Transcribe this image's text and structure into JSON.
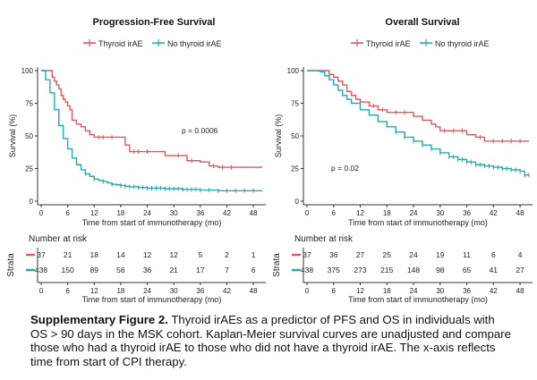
{
  "chart_data": [
    {
      "type": "line",
      "subtype": "kaplan-meier",
      "title": "Progression-Free Survival",
      "legend": {
        "strata_label": "Strata",
        "position": "top"
      },
      "xlabel": "Time from start of immunotherapy (mo)",
      "ylabel": "Survival (%)",
      "xlim": [
        0,
        50
      ],
      "ylim": [
        0,
        100
      ],
      "xticks": [
        0,
        6,
        12,
        18,
        24,
        30,
        36,
        42,
        48
      ],
      "yticks": [
        0,
        25,
        50,
        75,
        100
      ],
      "annotation": "p = 0.0006",
      "series": [
        {
          "name": "Thyroid irAE",
          "color": "#e5575d",
          "x": [
            0,
            2,
            2.5,
            3,
            3.5,
            4,
            4.5,
            5,
            5.5,
            6,
            6.5,
            7,
            8,
            9,
            10,
            11,
            12,
            13,
            14,
            16,
            17,
            19,
            20,
            22,
            24,
            26,
            27,
            28,
            29,
            33,
            34,
            36,
            38,
            40,
            42,
            44,
            46,
            48,
            50
          ],
          "y": [
            100,
            100,
            95,
            92,
            89,
            86,
            81,
            78,
            76,
            73,
            70,
            62,
            59,
            57,
            54,
            51,
            49,
            49,
            49,
            49,
            49,
            43,
            38,
            38,
            38,
            38,
            38,
            35,
            35,
            31,
            31,
            30,
            27,
            26,
            26,
            26,
            26,
            26,
            26
          ],
          "censor_x": [
            13,
            14,
            16,
            21,
            22,
            24,
            31,
            34,
            39,
            41,
            43
          ],
          "at_risk": [
            37,
            21,
            18,
            14,
            12,
            12,
            5,
            2,
            1
          ]
        },
        {
          "name": "No thyroid irAE",
          "color": "#20aeb2",
          "x": [
            0,
            1,
            2,
            3,
            4,
            5,
            6,
            7,
            8,
            9,
            10,
            11,
            12,
            13,
            14,
            15,
            16,
            17,
            18,
            19,
            20,
            21,
            22,
            24,
            26,
            28,
            30,
            32,
            34,
            36,
            38,
            40,
            42,
            44,
            46,
            48,
            50
          ],
          "y": [
            100,
            93,
            83,
            70,
            58,
            48,
            40,
            33,
            28,
            24,
            21,
            19,
            17,
            16,
            15,
            14,
            13,
            12.5,
            12,
            11.5,
            11,
            11,
            10.5,
            10,
            10,
            9.5,
            9.5,
            9,
            9,
            8.5,
            8.5,
            8,
            8,
            8,
            8,
            8,
            8
          ],
          "censor_x": [
            10,
            12,
            14,
            16,
            18,
            19,
            20,
            21,
            22,
            23,
            24,
            25,
            26,
            27,
            28,
            29,
            30,
            31,
            32,
            33,
            34,
            35,
            36,
            38,
            40,
            42,
            44,
            46,
            48
          ],
          "at_risk": [
            438,
            150,
            89,
            56,
            36,
            21,
            17,
            7,
            6
          ]
        }
      ],
      "risk_table": {
        "title": "Number at risk",
        "xlabel": "Time from start of immunotherapy (mo)"
      }
    },
    {
      "type": "line",
      "subtype": "kaplan-meier",
      "title": "Overall Survival",
      "legend": {
        "strata_label": "Strata",
        "position": "top"
      },
      "xlabel": "Time from start of immunotherapy (mo)",
      "ylabel": "Survival (%)",
      "xlim": [
        0,
        50
      ],
      "ylim": [
        0,
        100
      ],
      "xticks": [
        0,
        6,
        12,
        18,
        24,
        30,
        36,
        42,
        48
      ],
      "yticks": [
        0,
        25,
        50,
        75,
        100
      ],
      "annotation": "p = 0.02",
      "series": [
        {
          "name": "Thyroid irAE",
          "color": "#e5575d",
          "x": [
            0,
            4,
            5,
            6,
            7,
            8,
            9,
            10,
            11,
            12,
            14,
            16,
            18,
            22,
            24,
            26,
            27,
            28,
            29,
            30,
            32,
            34,
            36,
            38,
            40,
            50
          ],
          "y": [
            100,
            100,
            97,
            95,
            92,
            89,
            84,
            81,
            78,
            76,
            73,
            70,
            68,
            68,
            65,
            62,
            62,
            59,
            57,
            54,
            54,
            54,
            51,
            49,
            46,
            46
          ],
          "censor_x": [
            15,
            17,
            20,
            22,
            31,
            33,
            35,
            39,
            42,
            44,
            46,
            48
          ],
          "at_risk": [
            37,
            36,
            27,
            25,
            24,
            19,
            11,
            6,
            4
          ]
        },
        {
          "name": "No thyroid irAE",
          "color": "#20aeb2",
          "x": [
            0,
            1,
            2,
            3,
            4,
            5,
            6,
            7,
            8,
            9,
            10,
            12,
            14,
            16,
            18,
            20,
            22,
            24,
            26,
            28,
            30,
            32,
            34,
            36,
            38,
            40,
            42,
            44,
            46,
            48,
            49,
            50
          ],
          "y": [
            100,
            100,
            100,
            99,
            96,
            93,
            89,
            85,
            81,
            78,
            75,
            70,
            66,
            61,
            57,
            53,
            49,
            46,
            43,
            40,
            37,
            34,
            32,
            30,
            28,
            27,
            26,
            25,
            24,
            23,
            20,
            20
          ],
          "censor_x": [
            20,
            22,
            24,
            26,
            28,
            30,
            32,
            33,
            34,
            35,
            36,
            37,
            38,
            39,
            40,
            41,
            42,
            43,
            44,
            45,
            46,
            47,
            48,
            49,
            50
          ],
          "at_risk": [
            438,
            375,
            273,
            215,
            148,
            98,
            65,
            41,
            27
          ]
        }
      ],
      "risk_table": {
        "title": "Number at risk",
        "xlabel": "Time from start of immunotherapy (mo)"
      }
    }
  ],
  "caption": {
    "label": "Supplementary Figure 2.",
    "text": " Thyroid irAEs as a predictor of PFS and OS in individuals with OS > 90 days in the MSK cohort. Kaplan-Meier survival curves are unadjusted and compare those who had a thyroid irAE to those who did not have a thyroid irAE. The x-axis reflects time from start of CPI therapy."
  }
}
